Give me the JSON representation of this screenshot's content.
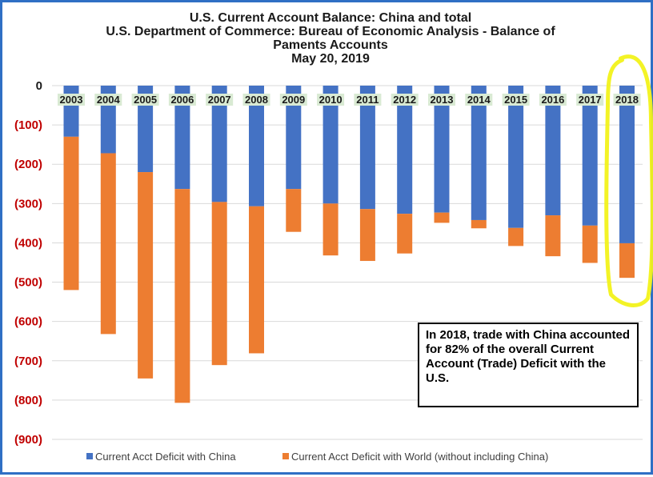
{
  "chart_data": {
    "type": "bar",
    "title_lines": [
      "U.S. Current Account Balance: China and total",
      "U.S. Department of Commerce:  Bureau of Economic Analysis - Balance of",
      "Paments Accounts",
      "May 20, 2019"
    ],
    "categories": [
      "2003",
      "2004",
      "2005",
      "2006",
      "2007",
      "2008",
      "2009",
      "2010",
      "2011",
      "2012",
      "2013",
      "2014",
      "2015",
      "2016",
      "2017",
      "2018"
    ],
    "series": [
      {
        "name": "Current Acct Deficit with China",
        "color": "#4472c4",
        "values": [
          -130,
          -172,
          -220,
          -263,
          -296,
          -307,
          -263,
          -300,
          -314,
          -326,
          -323,
          -342,
          -362,
          -330,
          -356,
          -401
        ]
      },
      {
        "name": "Current Acct Deficit with World (without including China)",
        "color": "#ed7d31",
        "values": [
          -390,
          -460,
          -525,
          -544,
          -415,
          -374,
          -109,
          -132,
          -132,
          -101,
          -26,
          -21,
          -46,
          -104,
          -95,
          -88
        ]
      }
    ],
    "stacked": true,
    "ylim": [
      -900,
      0
    ],
    "yticks": [
      0,
      -100,
      -200,
      -300,
      -400,
      -500,
      -600,
      -700,
      -800,
      -900
    ],
    "ytick_labels": [
      "0",
      "(100)",
      "(200)",
      "(300)",
      "(400)",
      "(500)",
      "(600)",
      "(700)",
      "(800)",
      "(900)"
    ],
    "ytick_color": "#c00000",
    "grid": true,
    "legend_position": "bottom",
    "highlight_category": "2018",
    "highlight_color": "#f2f21a",
    "year_label_bg": "#d9ead3"
  },
  "annotation": {
    "text": "In 2018, trade with China accounted for 82% of the overall Current Account (Trade) Deficit with the U.S."
  }
}
